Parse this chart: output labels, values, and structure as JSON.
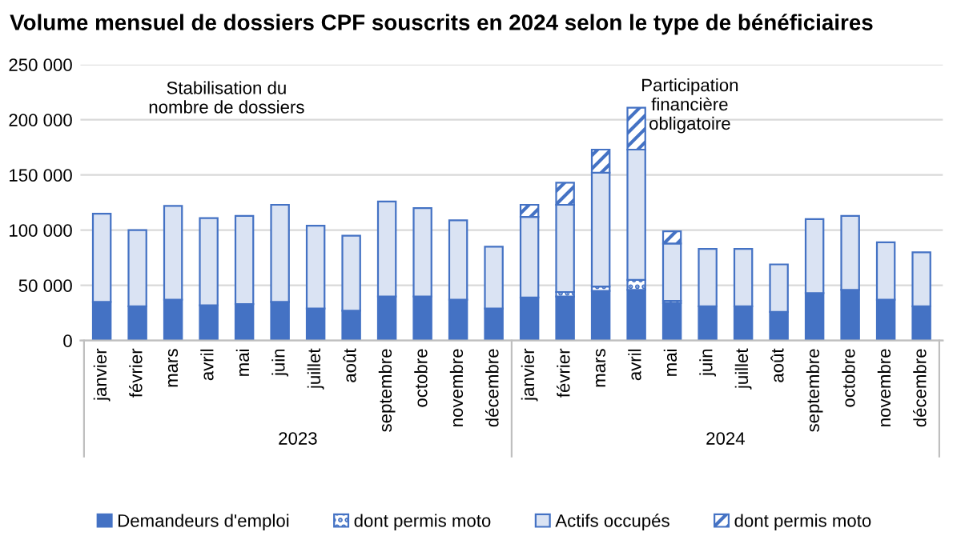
{
  "chart_data": {
    "type": "bar",
    "title": "Volume mensuel de dossiers CPF souscrits en 2024 selon le type de bénéficiaires",
    "categories": [
      "janvier",
      "février",
      "mars",
      "avril",
      "mai",
      "juin",
      "juillet",
      "août",
      "septembre",
      "octobre",
      "novembre",
      "décembre",
      "janvier",
      "février",
      "mars",
      "avril",
      "mai",
      "juin",
      "juillet",
      "août",
      "septembre",
      "octobre",
      "novembre",
      "décembre"
    ],
    "stacked": true,
    "series": [
      {
        "name": "Demandeurs d'emploi",
        "color": "#4472c4",
        "values": [
          35000,
          31000,
          37000,
          32000,
          33000,
          35000,
          29000,
          27000,
          40000,
          40000,
          37000,
          29000,
          39000,
          40000,
          45000,
          46000,
          34000,
          31000,
          31000,
          26000,
          43000,
          46000,
          37000,
          31000
        ]
      },
      {
        "name": "dont permis moto",
        "color": "#4472c4",
        "values": [
          null,
          null,
          null,
          null,
          null,
          null,
          null,
          null,
          null,
          null,
          null,
          null,
          null,
          4000,
          4000,
          9000,
          2000,
          null,
          null,
          null,
          null,
          null,
          null,
          null
        ]
      },
      {
        "name": "Actifs occupés",
        "color": "#dae3f3",
        "values": [
          80000,
          69000,
          85000,
          79000,
          80000,
          88000,
          75000,
          68000,
          86000,
          80000,
          72000,
          56000,
          73000,
          79000,
          103000,
          118000,
          52000,
          52000,
          52000,
          43000,
          67000,
          67000,
          52000,
          49000
        ]
      },
      {
        "name": "dont permis moto",
        "color": "#4472c4",
        "values": [
          null,
          null,
          null,
          null,
          null,
          null,
          null,
          null,
          null,
          null,
          null,
          null,
          11000,
          20000,
          21000,
          38000,
          11000,
          null,
          null,
          null,
          null,
          null,
          null,
          null
        ]
      }
    ],
    "ylim": [
      0,
      250000
    ],
    "yticks": [
      {
        "value": 0,
        "label": "0"
      },
      {
        "value": 50000,
        "label": "50 000"
      },
      {
        "value": 100000,
        "label": "100 000"
      },
      {
        "value": 150000,
        "label": "150 000"
      },
      {
        "value": 200000,
        "label": "200 000"
      },
      {
        "value": 250000,
        "label": "250 000"
      }
    ],
    "grid": "y",
    "legend": "bottom",
    "annotations": [
      "2023",
      "2024",
      "Stabilisation du\nnombre de dossiers",
      "Participation\nfinancière\nobligatoire"
    ]
  }
}
